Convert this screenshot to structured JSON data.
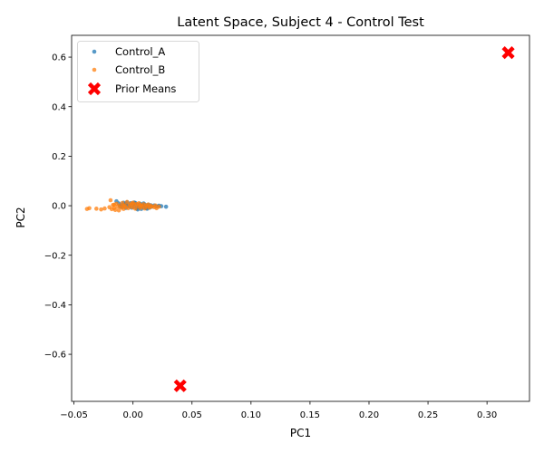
{
  "chart_data": {
    "type": "scatter",
    "title": "Latent Space, Subject 4 - Control Test",
    "xlabel": "PC1",
    "ylabel": "PC2",
    "xlim": [
      -0.052,
      0.336
    ],
    "ylim": [
      -0.79,
      0.688
    ],
    "xticks": [
      -0.05,
      0.0,
      0.05,
      0.1,
      0.15,
      0.2,
      0.25,
      0.3
    ],
    "xtick_labels": [
      "−0.05",
      "0.00",
      "0.05",
      "0.10",
      "0.15",
      "0.20",
      "0.25",
      "0.30"
    ],
    "yticks": [
      -0.6,
      -0.4,
      -0.2,
      0.0,
      0.2,
      0.4,
      0.6
    ],
    "ytick_labels": [
      "−0.6",
      "−0.4",
      "−0.2",
      "0.0",
      "0.2",
      "0.4",
      "0.6"
    ],
    "grid": false,
    "legend_position": "top-left",
    "series": [
      {
        "name": "Control_A",
        "color": "#1f77b4",
        "marker": "dot",
        "points": [
          [
            -0.014,
            0.018
          ],
          [
            -0.012,
            0.009
          ],
          [
            -0.01,
            0.002
          ],
          [
            -0.009,
            -0.006
          ],
          [
            -0.008,
            0.012
          ],
          [
            -0.007,
            0.004
          ],
          [
            -0.006,
            -0.009
          ],
          [
            -0.005,
            0.014
          ],
          [
            -0.004,
            0.001
          ],
          [
            -0.003,
            -0.004
          ],
          [
            -0.002,
            0.01
          ],
          [
            -0.001,
            -0.008
          ],
          [
            0.0,
            0.006
          ],
          [
            0.001,
            -0.002
          ],
          [
            0.002,
            0.011
          ],
          [
            0.003,
            -0.011
          ],
          [
            0.004,
            0.003
          ],
          [
            0.005,
            -0.006
          ],
          [
            0.006,
            0.008
          ],
          [
            0.007,
            -0.013
          ],
          [
            0.008,
            0.001
          ],
          [
            0.009,
            -0.007
          ],
          [
            0.01,
            0.005
          ],
          [
            0.011,
            -0.01
          ],
          [
            0.012,
            -0.002
          ],
          [
            0.013,
            0.004
          ],
          [
            0.014,
            -0.008
          ],
          [
            0.015,
            0.002
          ],
          [
            0.016,
            -0.004
          ],
          [
            0.018,
            0.001
          ],
          [
            0.02,
            -0.003
          ],
          [
            0.022,
            0.0
          ],
          [
            0.024,
            -0.002
          ],
          [
            0.028,
            -0.004
          ],
          [
            -0.011,
            -0.003
          ],
          [
            -0.006,
            0.007
          ],
          [
            0.001,
            0.013
          ],
          [
            0.004,
            -0.015
          ],
          [
            0.009,
            0.009
          ],
          [
            0.012,
            -0.012
          ]
        ]
      },
      {
        "name": "Control_B",
        "color": "#ff7f0e",
        "marker": "dot",
        "points": [
          [
            -0.039,
            -0.013
          ],
          [
            -0.037,
            -0.01
          ],
          [
            -0.031,
            -0.012
          ],
          [
            -0.027,
            -0.015
          ],
          [
            -0.024,
            -0.011
          ],
          [
            -0.02,
            -0.006
          ],
          [
            -0.019,
            0.022
          ],
          [
            -0.018,
            -0.014
          ],
          [
            -0.017,
            0.003
          ],
          [
            -0.016,
            -0.009
          ],
          [
            -0.015,
            -0.017
          ],
          [
            -0.014,
            0.008
          ],
          [
            -0.013,
            -0.004
          ],
          [
            -0.012,
            -0.019
          ],
          [
            -0.011,
            0.001
          ],
          [
            -0.01,
            -0.008
          ],
          [
            -0.009,
            0.011
          ],
          [
            -0.008,
            -0.013
          ],
          [
            -0.007,
            0.002
          ],
          [
            -0.006,
            -0.006
          ],
          [
            -0.005,
            0.015
          ],
          [
            -0.004,
            -0.01
          ],
          [
            -0.003,
            0.005
          ],
          [
            -0.002,
            -0.003
          ],
          [
            -0.001,
            0.009
          ],
          [
            0.0,
            -0.007
          ],
          [
            0.001,
            0.004
          ],
          [
            0.002,
            -0.012
          ],
          [
            0.003,
            0.007
          ],
          [
            0.004,
            -0.002
          ],
          [
            0.005,
            0.01
          ],
          [
            0.006,
            -0.009
          ],
          [
            0.007,
            0.001
          ],
          [
            0.008,
            -0.005
          ],
          [
            0.009,
            0.006
          ],
          [
            0.01,
            -0.011
          ],
          [
            0.011,
            0.002
          ],
          [
            0.012,
            -0.004
          ],
          [
            0.013,
            0.005
          ],
          [
            0.014,
            -0.008
          ],
          [
            0.015,
            0.0
          ],
          [
            0.016,
            -0.003
          ],
          [
            0.018,
            -0.006
          ],
          [
            0.019,
            0.001
          ],
          [
            0.02,
            -0.01
          ],
          [
            0.022,
            -0.004
          ],
          [
            -0.016,
            0.004
          ],
          [
            -0.008,
            -0.001
          ],
          [
            0.0,
            0.012
          ],
          [
            0.006,
            0.003
          ]
        ]
      },
      {
        "name": "Prior Means",
        "color": "#ff0000",
        "marker": "x",
        "points": [
          [
            0.318,
            0.618
          ],
          [
            0.04,
            -0.727
          ]
        ]
      }
    ]
  }
}
